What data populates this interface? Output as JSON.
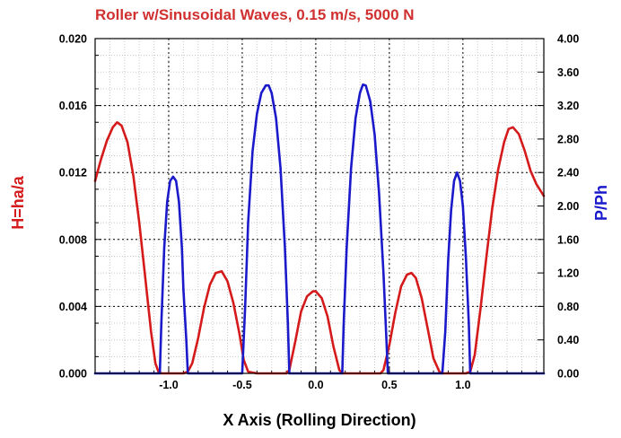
{
  "chart_data": {
    "type": "line",
    "title": "Roller w/Sinusoidal Waves, 0.15 m/s, 5000 N",
    "xlabel": "X Axis (Rolling Direction)",
    "ylabel_left": "H=ha/a",
    "ylabel_right": "P/Ph",
    "xlim": [
      -1.5,
      1.55
    ],
    "ylim_left": [
      0,
      0.02
    ],
    "ylim_right": [
      0,
      4.0
    ],
    "x_ticks": [
      "-1.0",
      "-0.5",
      "0.0",
      "0.5",
      "1.0"
    ],
    "y_ticks_left": [
      "0.000",
      "0.004",
      "0.008",
      "0.012",
      "0.016",
      "0.020"
    ],
    "y_ticks_right": [
      "0.00",
      "0.40",
      "0.80",
      "1.20",
      "1.60",
      "2.00",
      "2.40",
      "2.80",
      "3.20",
      "3.60",
      "4.00"
    ],
    "grid": true,
    "colors": {
      "film": "#d41a1a",
      "pressure": "#1a1aca",
      "title": "#d03030",
      "right_label": "#1a1aca"
    },
    "series": [
      {
        "axis": "left",
        "x": [
          -1.5,
          -1.46,
          -1.42,
          -1.38,
          -1.35,
          -1.32,
          -1.28,
          -1.24,
          -1.2,
          -1.16,
          -1.12,
          -1.09,
          -1.07,
          -1.05,
          -1.02,
          -1.0,
          -0.95,
          -0.9,
          -0.87,
          -0.84,
          -0.8,
          -0.76,
          -0.72,
          -0.68,
          -0.64,
          -0.6,
          -0.56,
          -0.52,
          -0.49,
          -0.46,
          -0.4,
          -0.3,
          -0.22,
          -0.2,
          -0.18,
          -0.14,
          -0.1,
          -0.06,
          -0.02,
          0.0,
          0.04,
          0.08,
          0.12,
          0.16,
          0.18,
          0.2,
          0.3,
          0.4,
          0.44,
          0.46,
          0.5,
          0.54,
          0.58,
          0.62,
          0.65,
          0.68,
          0.72,
          0.76,
          0.8,
          0.84,
          0.86,
          0.88,
          0.95,
          1.02,
          1.05,
          1.08,
          1.12,
          1.16,
          1.2,
          1.24,
          1.28,
          1.31,
          1.34,
          1.38,
          1.42,
          1.46,
          1.5,
          1.55
        ],
        "values": [
          0.0115,
          0.0128,
          0.0139,
          0.0147,
          0.015,
          0.0148,
          0.0138,
          0.0118,
          0.009,
          0.0058,
          0.0025,
          0.0006,
          0.0001,
          0.0,
          0.0,
          0.0,
          0.0,
          0.0,
          0.0001,
          0.0006,
          0.0021,
          0.0039,
          0.0053,
          0.006,
          0.0061,
          0.0055,
          0.0042,
          0.0024,
          0.0008,
          0.0001,
          0.0,
          0.0,
          0.0,
          0.0,
          0.0002,
          0.0019,
          0.0037,
          0.0046,
          0.0049,
          0.0049,
          0.0045,
          0.0034,
          0.0016,
          0.0002,
          0.0,
          0.0,
          0.0,
          0.0,
          0.0,
          0.0002,
          0.0017,
          0.0036,
          0.0052,
          0.0059,
          0.006,
          0.0057,
          0.0045,
          0.0027,
          0.0009,
          0.0001,
          0.0,
          0.0,
          0.0,
          0.0,
          0.0001,
          0.0011,
          0.0039,
          0.007,
          0.0099,
          0.0122,
          0.0138,
          0.0146,
          0.0147,
          0.0143,
          0.0133,
          0.0121,
          0.0113,
          0.0106
        ]
      },
      {
        "axis": "right",
        "x": [
          -1.5,
          -1.06,
          -1.05,
          -1.03,
          -1.01,
          -0.99,
          -0.97,
          -0.95,
          -0.93,
          -0.91,
          -0.9,
          -0.88,
          -0.87,
          -0.5,
          -0.48,
          -0.46,
          -0.43,
          -0.4,
          -0.37,
          -0.34,
          -0.32,
          -0.3,
          -0.27,
          -0.24,
          -0.21,
          -0.19,
          -0.18,
          0.18,
          0.19,
          0.21,
          0.24,
          0.27,
          0.3,
          0.32,
          0.34,
          0.37,
          0.4,
          0.43,
          0.46,
          0.48,
          0.49,
          0.86,
          0.88,
          0.9,
          0.92,
          0.94,
          0.96,
          0.98,
          1.0,
          1.02,
          1.04,
          1.05,
          1.55
        ],
        "values": [
          0.0,
          0.0,
          0.6,
          1.5,
          2.05,
          2.3,
          2.35,
          2.3,
          2.05,
          1.5,
          1.0,
          0.4,
          0.0,
          0.0,
          0.8,
          1.8,
          2.65,
          3.1,
          3.35,
          3.44,
          3.44,
          3.35,
          3.05,
          2.45,
          1.5,
          0.6,
          0.0,
          0.0,
          0.6,
          1.5,
          2.45,
          3.05,
          3.35,
          3.45,
          3.44,
          3.25,
          2.85,
          2.15,
          1.2,
          0.4,
          0.0,
          0.0,
          0.5,
          1.35,
          1.95,
          2.3,
          2.4,
          2.3,
          2.0,
          1.4,
          0.6,
          0.0,
          0.0
        ]
      }
    ]
  }
}
